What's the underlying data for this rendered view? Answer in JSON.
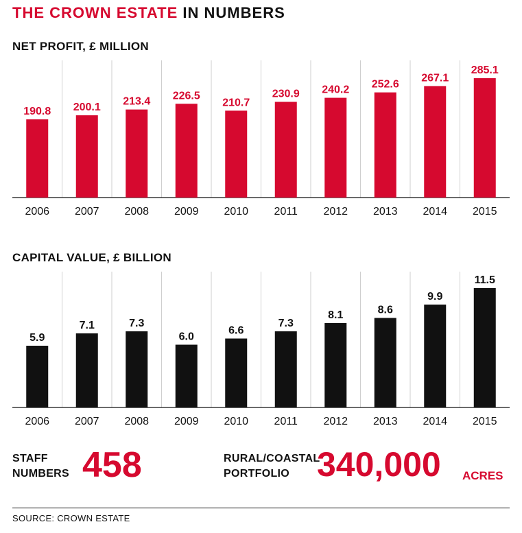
{
  "header": {
    "title_part1": "THE CROWN ESTATE",
    "title_part2": "IN NUMBERS"
  },
  "colors": {
    "accent": "#d6092f",
    "dark": "#111111"
  },
  "chart_data": [
    {
      "type": "bar",
      "title": "NET PROFIT, £ MILLION",
      "categories": [
        "2006",
        "2007",
        "2008",
        "2009",
        "2010",
        "2011",
        "2012",
        "2013",
        "2014",
        "2015"
      ],
      "values": [
        190.8,
        200.1,
        213.4,
        226.5,
        210.7,
        230.9,
        240.2,
        252.6,
        267.1,
        285.1
      ],
      "value_labels": [
        "190.8",
        "200.1",
        "213.4",
        "226.5",
        "210.7",
        "230.9",
        "240.2",
        "252.6",
        "267.1",
        "285.1"
      ],
      "color": "#d6092f",
      "grid": "vertical separators",
      "legend": "none"
    },
    {
      "type": "bar",
      "title": "CAPITAL VALUE, £ BILLION",
      "categories": [
        "2006",
        "2007",
        "2008",
        "2009",
        "2010",
        "2011",
        "2012",
        "2013",
        "2014",
        "2015"
      ],
      "values": [
        5.9,
        7.1,
        7.3,
        6.0,
        6.6,
        7.3,
        8.1,
        8.6,
        9.9,
        11.5
      ],
      "value_labels": [
        "5.9",
        "7.1",
        "7.3",
        "6.0",
        "6.6",
        "7.3",
        "8.1",
        "8.6",
        "9.9",
        "11.5"
      ],
      "color": "#111111",
      "grid": "vertical separators",
      "legend": "none"
    }
  ],
  "stats": {
    "staff": {
      "label_line1": "STAFF",
      "label_line2": "NUMBERS",
      "value": "458"
    },
    "rural": {
      "label_line1": "RURAL/COASTAL",
      "label_line2": "PORTFOLIO",
      "value": "340,000",
      "unit": "ACRES"
    }
  },
  "footer": {
    "source": "SOURCE: CROWN ESTATE"
  }
}
